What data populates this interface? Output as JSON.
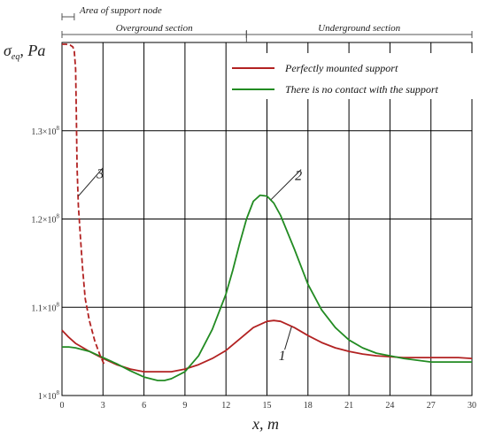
{
  "chart_data": {
    "type": "line",
    "ylabel": "σ",
    "ylabel_sub": "eq",
    "ylabel_unit": ", Pa",
    "xlabel": "x, m",
    "xlim": [
      0,
      30
    ],
    "ylim": [
      100000000.0,
      140000000.0
    ],
    "xticks": [
      0,
      3,
      6,
      9,
      12,
      15,
      18,
      21,
      24,
      27,
      30
    ],
    "xtick_labels": [
      "0",
      "3",
      "6",
      "9",
      "12",
      "15",
      "18",
      "21",
      "24",
      "27",
      "30"
    ],
    "yticks": [
      100000000.0,
      110000000.0,
      120000000.0,
      130000000.0
    ],
    "ytick_mantissas": [
      "1",
      "1.1",
      "1.2",
      "1.3"
    ],
    "ytick_exponents": [
      "8",
      "8",
      "8",
      "8"
    ],
    "ytick_mult": "×10",
    "grid": true,
    "legend_position": "top-right",
    "series": [
      {
        "name": "Perfectly mounted support",
        "color": "#b22222",
        "style": "solid",
        "x": [
          0,
          0.5,
          1,
          2,
          3,
          4,
          5,
          6,
          7,
          8,
          9,
          10,
          11,
          12,
          13,
          14,
          15,
          15.5,
          16,
          17,
          18,
          19,
          20,
          21,
          22,
          23,
          24,
          25,
          26,
          27,
          28,
          29,
          30
        ],
        "y": [
          107400000.0,
          106600000.0,
          105900000.0,
          105000000.0,
          104200000.0,
          103500000.0,
          103000000.0,
          102700000.0,
          102700000.0,
          102700000.0,
          103000000.0,
          103500000.0,
          104200000.0,
          105100000.0,
          106400000.0,
          107700000.0,
          108400000.0,
          108500000.0,
          108400000.0,
          107700000.0,
          106800000.0,
          106000000.0,
          105400000.0,
          105000000.0,
          104700000.0,
          104500000.0,
          104400000.0,
          104300000.0,
          104300000.0,
          104300000.0,
          104300000.0,
          104300000.0,
          104200000.0
        ]
      },
      {
        "name": "There is no contact with the support",
        "color": "#228b22",
        "style": "solid",
        "x": [
          0,
          0.5,
          1,
          2,
          3,
          4,
          5,
          6,
          7,
          7.5,
          8,
          9,
          10,
          11,
          12,
          12.5,
          13,
          13.5,
          14,
          14.5,
          15,
          15.5,
          16,
          17,
          18,
          19,
          20,
          21,
          22,
          23,
          24,
          25,
          26,
          27,
          28,
          29,
          30
        ],
        "y": [
          105500000.0,
          105500000.0,
          105400000.0,
          105000000.0,
          104300000.0,
          103600000.0,
          102800000.0,
          102100000.0,
          101700000.0,
          101700000.0,
          101900000.0,
          102700000.0,
          104500000.0,
          107500000.0,
          111500000.0,
          114200000.0,
          117200000.0,
          120000000.0,
          122000000.0,
          122700000.0,
          122600000.0,
          121800000.0,
          120400000.0,
          116600000.0,
          112600000.0,
          109700000.0,
          107700000.0,
          106300000.0,
          105400000.0,
          104800000.0,
          104500000.0,
          104200000.0,
          104000000.0,
          103800000.0,
          103800000.0,
          103800000.0,
          103800000.0
        ]
      },
      {
        "name": "",
        "color": "#b22222",
        "style": "dashed",
        "x": [
          0,
          0.3,
          0.6,
          0.8,
          0.9,
          1.0,
          1.05,
          1.1,
          1.2,
          1.35,
          1.5,
          1.7,
          2.0,
          2.4,
          2.8,
          3.1
        ],
        "y": [
          139800000.0,
          139800000.0,
          139700000.0,
          139500000.0,
          139000000.0,
          137000000.0,
          132000000.0,
          126000000.0,
          121500000.0,
          118000000.0,
          114500000.0,
          111000000.0,
          108500000.0,
          106200000.0,
          104500000.0,
          103500000.0
        ]
      }
    ],
    "curve_labels": [
      {
        "text": "1",
        "x": 16.3,
        "y": 105200000.0,
        "to_x": 16.8,
        "to_y": 107800000.0
      },
      {
        "text": "2",
        "x": 17.5,
        "y": 125600000.0,
        "to_x": 15.3,
        "to_y": 122200000.0
      },
      {
        "text": "3",
        "x": 3.0,
        "y": 125800000.0,
        "to_x": 1.2,
        "to_y": 122600000.0
      }
    ],
    "sections": [
      {
        "label": "Area of support node",
        "x_start": 0,
        "x_end": 0.9,
        "row": 1
      },
      {
        "label": "Overground section",
        "x_start": 0,
        "x_end": 13.5,
        "row": 2
      },
      {
        "label": "Underground section",
        "x_start": 13.5,
        "x_end": 30,
        "row": 2
      }
    ]
  }
}
